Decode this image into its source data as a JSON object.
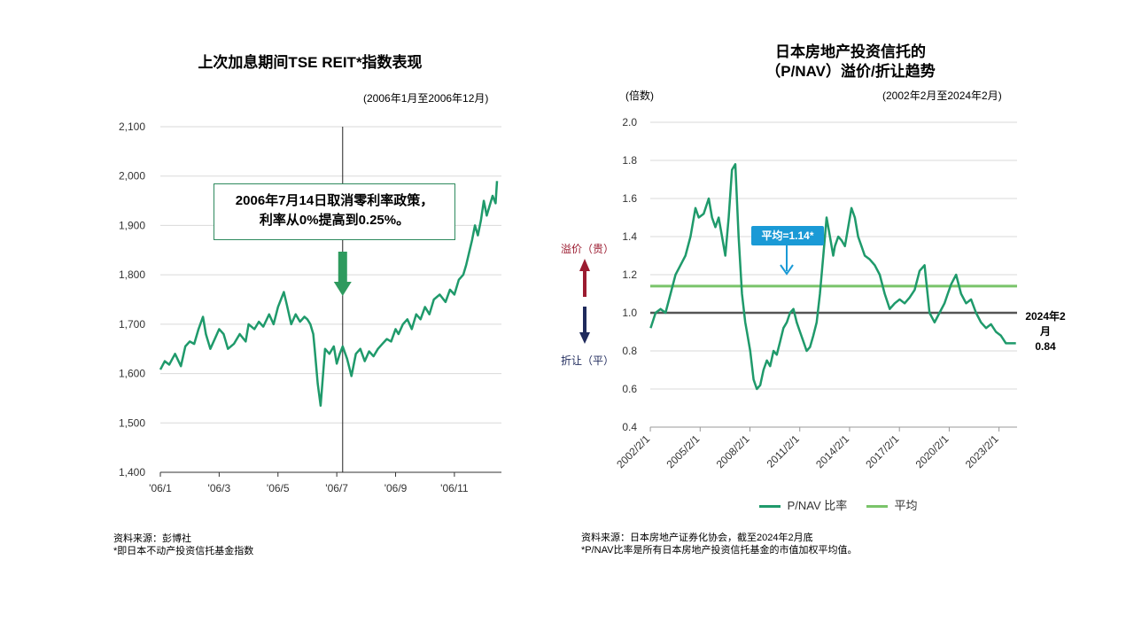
{
  "left": {
    "title": "上次加息期间TSE REIT*指数表现",
    "period": "(2006年1月至2006年12月)",
    "annotation_line1": "2006年7月14日取消零利率政策，",
    "annotation_line2": "利率从0%提高到0.25%。",
    "source_line1": "资料来源：彭博社",
    "source_line2": "*即日本不动产投资信托基金指数"
  },
  "right": {
    "title_line1": "日本房地产投资信托的",
    "title_line2": "（P/NAV）溢价/折让趋势",
    "unit": "(倍数)",
    "period": "(2002年2月至2024年2月)",
    "premium_label": "溢价（贵）",
    "discount_label": "折让（平）",
    "avg_callout": "平均=1.14*",
    "end_label_date": "2024年2月",
    "end_label_value": "0.84",
    "legend_pnav": "P/NAV 比率",
    "legend_avg": "平均",
    "source_line1": "资料来源：日本房地产证券化协会，截至2024年2月底",
    "source_line2": "*P/NAV比率是所有日本房地产投资信托基金的市值加权平均值。"
  },
  "colors": {
    "series_green": "#1f9a6b",
    "average_green": "#7ac46a",
    "parity_gray": "#555555",
    "callout_blue": "#1a9ad6",
    "premium_red": "#9b1b30",
    "discount_navy": "#1f2a5c",
    "arrow_green": "#2e9a5e"
  },
  "chart_data": [
    {
      "type": "line",
      "title": "上次加息期间TSE REIT*指数表现",
      "ylim": [
        1400,
        2100
      ],
      "yticks": [
        "1,400",
        "1,500",
        "1,600",
        "1,700",
        "1,800",
        "1,900",
        "2,000",
        "2,100"
      ],
      "xticks": [
        "'06/1",
        "'06/3",
        "'06/5",
        "'06/7",
        "'06/9",
        "'06/11"
      ],
      "event_marker": "'06/7",
      "x_months": [
        1.0,
        1.15,
        1.3,
        1.5,
        1.7,
        1.85,
        2.0,
        2.15,
        2.3,
        2.45,
        2.55,
        2.7,
        2.85,
        3.0,
        3.15,
        3.3,
        3.5,
        3.7,
        3.9,
        4.0,
        4.2,
        4.35,
        4.5,
        4.7,
        4.85,
        5.0,
        5.1,
        5.2,
        5.3,
        5.45,
        5.6,
        5.75,
        5.9,
        6.0,
        6.1,
        6.2,
        6.25,
        6.35,
        6.45,
        6.6,
        6.75,
        6.9,
        7.0,
        7.1,
        7.2,
        7.35,
        7.5,
        7.65,
        7.8,
        7.95,
        8.1,
        8.25,
        8.4,
        8.55,
        8.7,
        8.85,
        9.0,
        9.1,
        9.25,
        9.4,
        9.55,
        9.7,
        9.85,
        10.0,
        10.15,
        10.3,
        10.5,
        10.7,
        10.85,
        11.0,
        11.15,
        11.3,
        11.4,
        11.5,
        11.6,
        11.7,
        11.8,
        11.9,
        12.0,
        12.1,
        12.2,
        12.3,
        12.4,
        12.45
      ],
      "values": [
        1608,
        1625,
        1618,
        1640,
        1615,
        1655,
        1665,
        1660,
        1690,
        1715,
        1680,
        1650,
        1670,
        1690,
        1680,
        1650,
        1660,
        1680,
        1665,
        1700,
        1690,
        1705,
        1695,
        1720,
        1700,
        1735,
        1750,
        1765,
        1740,
        1700,
        1720,
        1705,
        1715,
        1710,
        1700,
        1680,
        1650,
        1580,
        1535,
        1650,
        1640,
        1655,
        1620,
        1640,
        1655,
        1630,
        1595,
        1640,
        1650,
        1625,
        1645,
        1635,
        1650,
        1660,
        1670,
        1665,
        1690,
        1680,
        1700,
        1710,
        1690,
        1720,
        1710,
        1735,
        1720,
        1750,
        1760,
        1745,
        1770,
        1760,
        1790,
        1800,
        1820,
        1845,
        1870,
        1900,
        1880,
        1910,
        1950,
        1920,
        1940,
        1960,
        1945,
        1990
      ]
    },
    {
      "type": "line",
      "title": "日本房地产投资信托的（P/NAV）溢价/折让趋势",
      "ylabel": "(倍数)",
      "ylim": [
        0.4,
        2.0
      ],
      "yticks": [
        "0.4",
        "0.6",
        "0.8",
        "1.0",
        "1.2",
        "1.4",
        "1.6",
        "1.8",
        "2.0"
      ],
      "xticks": [
        "2002/2/1",
        "2005/2/1",
        "2008/2/1",
        "2011/2/1",
        "2014/2/1",
        "2017/2/1",
        "2020/2/1",
        "2023/2/1"
      ],
      "x_range_years": [
        2002.08,
        2024.17
      ],
      "average": 1.14,
      "parity": 1.0,
      "series": [
        {
          "name": "P/NAV 比率",
          "x": [
            2002.1,
            2002.4,
            2002.7,
            2003.0,
            2003.3,
            2003.6,
            2003.9,
            2004.2,
            2004.5,
            2004.8,
            2005.0,
            2005.3,
            2005.6,
            2005.8,
            2006.0,
            2006.2,
            2006.4,
            2006.6,
            2006.8,
            2007.0,
            2007.2,
            2007.4,
            2007.6,
            2007.8,
            2007.9,
            2008.1,
            2008.3,
            2008.5,
            2008.7,
            2008.9,
            2009.1,
            2009.3,
            2009.5,
            2009.7,
            2009.9,
            2010.1,
            2010.3,
            2010.5,
            2010.7,
            2010.9,
            2011.1,
            2011.3,
            2011.5,
            2011.7,
            2011.9,
            2012.1,
            2012.3,
            2012.5,
            2012.7,
            2012.9,
            2013.1,
            2013.2,
            2013.4,
            2013.6,
            2013.8,
            2014.0,
            2014.2,
            2014.4,
            2014.6,
            2014.8,
            2015.0,
            2015.3,
            2015.6,
            2015.9,
            2016.2,
            2016.5,
            2016.8,
            2017.1,
            2017.4,
            2017.7,
            2018.0,
            2018.3,
            2018.6,
            2018.9,
            2019.2,
            2019.5,
            2019.8,
            2020.0,
            2020.2,
            2020.5,
            2020.8,
            2021.1,
            2021.4,
            2021.7,
            2022.0,
            2022.3,
            2022.6,
            2022.9,
            2023.2,
            2023.5,
            2023.8,
            2024.1
          ],
          "values": [
            0.92,
            1.0,
            1.02,
            1.0,
            1.1,
            1.2,
            1.25,
            1.3,
            1.4,
            1.55,
            1.5,
            1.52,
            1.6,
            1.5,
            1.45,
            1.5,
            1.4,
            1.3,
            1.5,
            1.75,
            1.78,
            1.4,
            1.1,
            0.95,
            0.9,
            0.8,
            0.65,
            0.6,
            0.62,
            0.7,
            0.75,
            0.72,
            0.8,
            0.78,
            0.85,
            0.92,
            0.95,
            1.0,
            1.02,
            0.95,
            0.9,
            0.85,
            0.8,
            0.82,
            0.88,
            0.95,
            1.1,
            1.3,
            1.5,
            1.4,
            1.3,
            1.35,
            1.4,
            1.38,
            1.35,
            1.45,
            1.55,
            1.5,
            1.4,
            1.35,
            1.3,
            1.28,
            1.25,
            1.2,
            1.1,
            1.02,
            1.05,
            1.07,
            1.05,
            1.08,
            1.12,
            1.22,
            1.25,
            1.0,
            0.95,
            1.0,
            1.05,
            1.1,
            1.15,
            1.2,
            1.1,
            1.05,
            1.07,
            1.0,
            0.95,
            0.92,
            0.94,
            0.9,
            0.88,
            0.84,
            0.84,
            0.84
          ]
        },
        {
          "name": "平均",
          "values": [
            1.14
          ]
        }
      ]
    }
  ]
}
